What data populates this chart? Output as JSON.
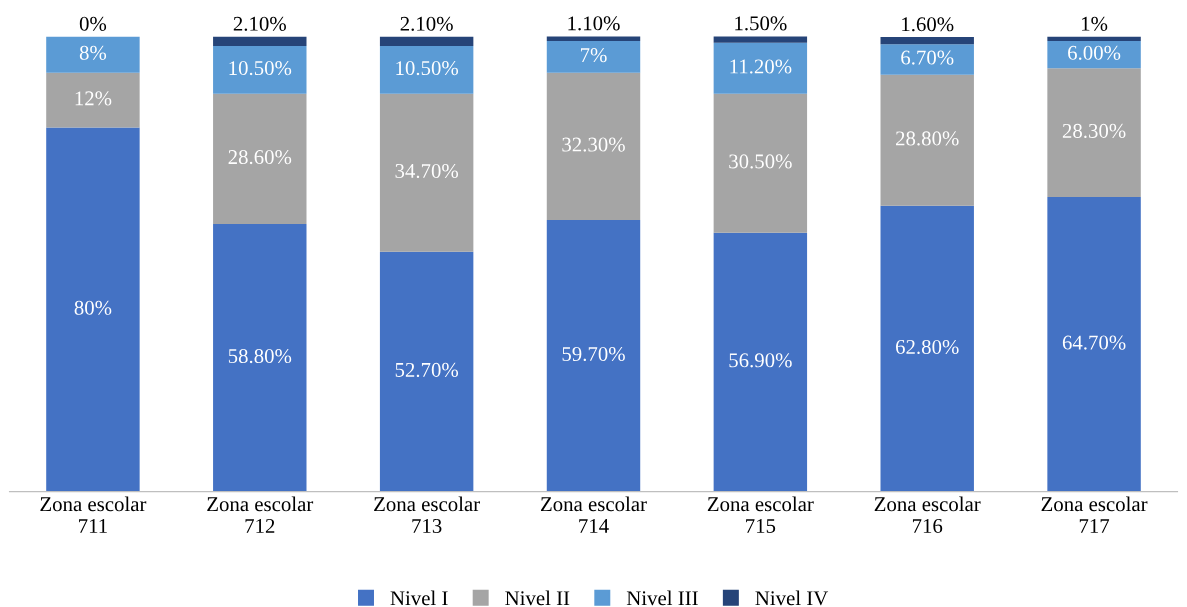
{
  "chart_data": {
    "type": "bar",
    "stacked": true,
    "categories": [
      "Zona escolar\n711",
      "Zona escolar\n712",
      "Zona escolar\n713",
      "Zona escolar\n714",
      "Zona escolar\n715",
      "Zona escolar\n716",
      "Zona escolar\n717"
    ],
    "ylim": [
      0,
      100
    ],
    "tick_labels": "x",
    "grid": false,
    "legend": "bottom",
    "series": [
      {
        "name": "Nivel I",
        "color": "#4472c4",
        "values": [
          80,
          58.8,
          52.7,
          59.7,
          56.9,
          62.8,
          64.7
        ],
        "value_labels": [
          "80%",
          "58.80%",
          "52.70%",
          "59.70%",
          "56.90%",
          "62.80%",
          "64.70%"
        ]
      },
      {
        "name": "Nivel II",
        "color": "#a5a5a5",
        "values": [
          12,
          28.6,
          34.7,
          32.3,
          30.5,
          28.8,
          28.3
        ],
        "value_labels": [
          "12%",
          "28.60%",
          "34.70%",
          "32.30%",
          "30.50%",
          "28.80%",
          "28.30%"
        ]
      },
      {
        "name": "Nivel III",
        "color": "#5b9bd5",
        "values": [
          8,
          10.5,
          10.5,
          7,
          11.2,
          6.7,
          6.0
        ],
        "value_labels": [
          "8%",
          "10.50%",
          "10.50%",
          "7%",
          "11.20%",
          "6.70%",
          "6.00%"
        ]
      },
      {
        "name": "Nivel IV",
        "color": "#264478",
        "values": [
          0,
          2.1,
          2.1,
          1.1,
          1.5,
          1.6,
          1
        ],
        "value_labels": [
          "0%",
          "2.10%",
          "2.10%",
          "1.10%",
          "1.50%",
          "1.60%",
          "1%"
        ]
      }
    ]
  }
}
